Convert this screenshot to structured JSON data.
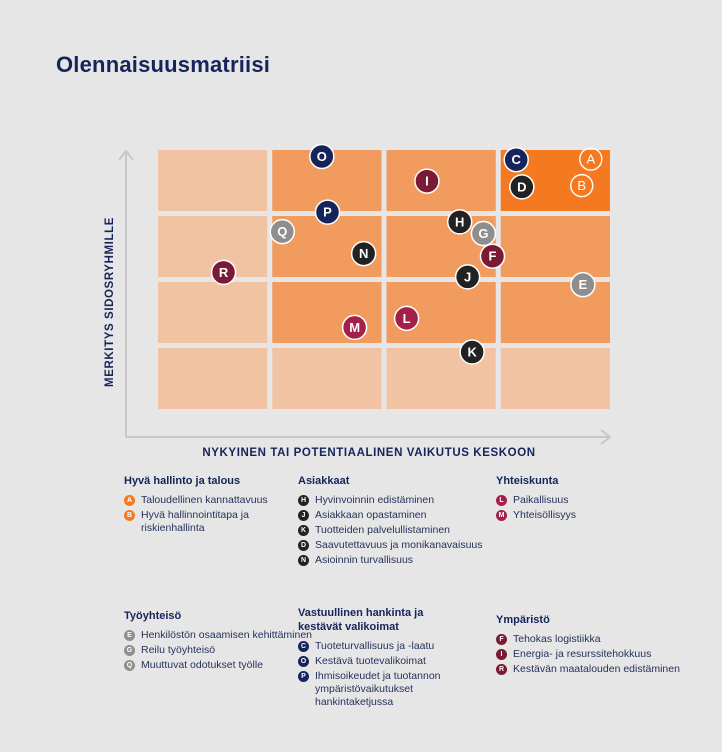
{
  "page": {
    "title": "Olennaisuusmatriisi"
  },
  "chart_data": {
    "type": "scatter",
    "title": "Olennaisuusmatriisi",
    "xlabel": "NYKYINEN TAI POTENTIAALINEN VAIKUTUS KESKOON",
    "ylabel": "MERKITYS SIDOSRYHMILLE",
    "xlim": [
      0,
      4
    ],
    "ylim": [
      0,
      4
    ],
    "grid": {
      "cols": 4,
      "rows": 4
    },
    "cell_colors": [
      [
        "#f2c3a2",
        "#f29b5e",
        "#f29b5e",
        "#f47920"
      ],
      [
        "#f2c3a2",
        "#f29b5e",
        "#f29b5e",
        "#f29b5e"
      ],
      [
        "#f2c3a2",
        "#f29b5e",
        "#f29b5e",
        "#f29b5e"
      ],
      [
        "#f2c3a2",
        "#f2c3a2",
        "#f2c3a2",
        "#f2c3a2"
      ]
    ],
    "points": [
      {
        "label": "A",
        "x": 3.83,
        "y": 3.86,
        "style": "outline-white"
      },
      {
        "label": "B",
        "x": 3.75,
        "y": 3.45,
        "style": "outline-white"
      },
      {
        "label": "C",
        "x": 3.17,
        "y": 3.85,
        "color": "#15245a"
      },
      {
        "label": "D",
        "x": 3.22,
        "y": 3.43,
        "color": "#222222"
      },
      {
        "label": "E",
        "x": 3.76,
        "y": 1.92,
        "color": "#8e8e8e"
      },
      {
        "label": "F",
        "x": 2.96,
        "y": 2.36,
        "color": "#7a1a34"
      },
      {
        "label": "G",
        "x": 2.88,
        "y": 2.71,
        "color": "#8e8e8e"
      },
      {
        "label": "H",
        "x": 2.67,
        "y": 2.89,
        "color": "#222222"
      },
      {
        "label": "I",
        "x": 2.38,
        "y": 3.52,
        "color": "#7a1a34"
      },
      {
        "label": "J",
        "x": 2.74,
        "y": 2.04,
        "color": "#222222"
      },
      {
        "label": "K",
        "x": 2.78,
        "y": 0.88,
        "color": "#222222"
      },
      {
        "label": "L",
        "x": 2.2,
        "y": 1.4,
        "color": "#a3204a"
      },
      {
        "label": "M",
        "x": 1.74,
        "y": 1.26,
        "color": "#a3204a"
      },
      {
        "label": "N",
        "x": 1.82,
        "y": 2.4,
        "color": "#222222"
      },
      {
        "label": "O",
        "x": 1.45,
        "y": 3.9,
        "color": "#15245a"
      },
      {
        "label": "P",
        "x": 1.5,
        "y": 3.04,
        "color": "#15245a"
      },
      {
        "label": "Q",
        "x": 1.1,
        "y": 2.74,
        "color": "#8e8e8e"
      },
      {
        "label": "R",
        "x": 0.58,
        "y": 2.11,
        "color": "#7a1a34"
      }
    ]
  },
  "legend": {
    "hyva_hallinto": {
      "title": "Hyvä hallinto ja talous",
      "items": [
        {
          "badge": "A",
          "color": "#f47920",
          "text": "Taloudellinen kannattavuus"
        },
        {
          "badge": "B",
          "color": "#f47920",
          "text": "Hyvä hallinnointitapa ja riskienhallinta"
        }
      ]
    },
    "asiakkaat": {
      "title": "Asiakkaat",
      "items": [
        {
          "badge": "H",
          "color": "#222222",
          "text": "Hyvinvoinnin edistäminen"
        },
        {
          "badge": "J",
          "color": "#222222",
          "text": "Asiakkaan opastaminen"
        },
        {
          "badge": "K",
          "color": "#222222",
          "text": "Tuotteiden palvelullistaminen"
        },
        {
          "badge": "D",
          "color": "#222222",
          "text": "Saavutettavuus ja monikanavaisuus"
        },
        {
          "badge": "N",
          "color": "#222222",
          "text": "Asioinnin turvallisuus"
        }
      ]
    },
    "yhteiskunta": {
      "title": "Yhteiskunta",
      "items": [
        {
          "badge": "L",
          "color": "#a3204a",
          "text": "Paikallisuus"
        },
        {
          "badge": "M",
          "color": "#a3204a",
          "text": "Yhteisöllisyys"
        }
      ]
    },
    "tyoyhteiso": {
      "title": "Työyhteisö",
      "items": [
        {
          "badge": "E",
          "color": "#8e8e8e",
          "text": "Henkilöstön osaamisen kehittäminen"
        },
        {
          "badge": "G",
          "color": "#8e8e8e",
          "text": "Reilu työyhteisö"
        },
        {
          "badge": "Q",
          "color": "#8e8e8e",
          "text": "Muuttuvat odotukset työlle"
        }
      ]
    },
    "vastuullinen": {
      "title": "Vastuullinen hankinta ja kestävät valikoimat",
      "items": [
        {
          "badge": "C",
          "color": "#15245a",
          "text": "Tuoteturvallisuus ja -laatu"
        },
        {
          "badge": "O",
          "color": "#15245a",
          "text": "Kestävä tuotevalikoimat"
        },
        {
          "badge": "P",
          "color": "#15245a",
          "text": "Ihmisoikeudet ja tuotannon ympäristövaikutukset hankintaketjussa"
        }
      ]
    },
    "ymparisto": {
      "title": "Ympäristö",
      "items": [
        {
          "badge": "F",
          "color": "#7a1a34",
          "text": "Tehokas logistiikka"
        },
        {
          "badge": "I",
          "color": "#7a1a34",
          "text": "Energia- ja resurssitehokkuus"
        },
        {
          "badge": "R",
          "color": "#7a1a34",
          "text": "Kestävän maatalouden edistäminen"
        }
      ]
    }
  }
}
